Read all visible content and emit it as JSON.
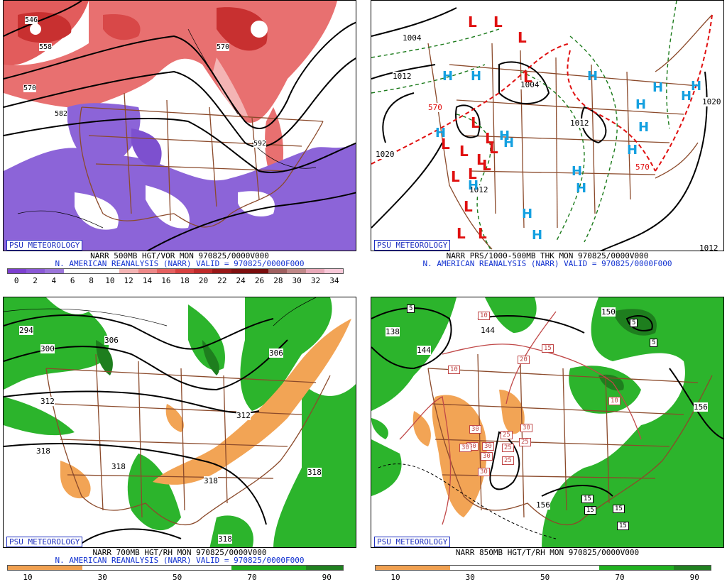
{
  "psu_label": "PSU METEOROLOGY",
  "reanalysis_text": "N. AMERICAN REANALYSIS (NARR) VALID = 970825/0000F000",
  "colors": {
    "label_blue": "#2030c0",
    "state_lines": "#8b4a2b",
    "low_red": "#e01010",
    "high_cyan": "#14a0e0"
  },
  "panels": {
    "top_left": {
      "title": "NARR 500MB HGT/VOR MON 970825/0000V000",
      "contour_labels": [
        "546",
        "558",
        "570",
        "582",
        "570",
        "592"
      ],
      "colorbar_ticks": [
        "0",
        "2",
        "4",
        "6",
        "8",
        "10",
        "12",
        "14",
        "16",
        "18",
        "20",
        "22",
        "24",
        "26",
        "28",
        "30",
        "32",
        "34"
      ],
      "colorbar_colors": [
        "#7d3fd0",
        "#8a58d6",
        "#9b75da",
        "#ffffff",
        "#ffffff",
        "#ffffff",
        "#f4b4b4",
        "#ee8888",
        "#e66060",
        "#d84040",
        "#c02a2a",
        "#9a1818",
        "#801010",
        "#7a0c0c",
        "#a06060",
        "#c08888",
        "#e8a8b8",
        "#f8c8d8"
      ]
    },
    "top_right": {
      "title": "NARR PRS/1000-500MB THK MON 970825/0000V000",
      "contour_labels": [
        "1004",
        "1012",
        "1020",
        "1004",
        "1012",
        "1012",
        "1020",
        "570",
        "570",
        "1012"
      ],
      "low_markers": [
        "L",
        "L",
        "L",
        "L",
        "L",
        "L",
        "L",
        "L",
        "L",
        "L",
        "L",
        "L",
        "L",
        "L",
        "L",
        "L"
      ],
      "high_markers": [
        "H",
        "H",
        "H",
        "H",
        "H",
        "H",
        "H",
        "H",
        "H",
        "H",
        "H",
        "H",
        "H",
        "H",
        "H",
        "H",
        "H"
      ]
    },
    "bottom_left": {
      "title": "NARR 700MB HGT/RH MON 970825/0000V000",
      "contour_labels": [
        "294",
        "300",
        "306",
        "306",
        "312",
        "312",
        "318",
        "318",
        "318",
        "318",
        "318"
      ],
      "colorbar_ticks": [
        "10",
        "30",
        "50",
        "70",
        "90"
      ],
      "colorbar_colors": [
        "#f0a050",
        "#f0a050",
        "#ffffff",
        "#ffffff",
        "#ffffff",
        "#ffffff",
        "#20b020",
        "#20b020",
        "#208020"
      ]
    },
    "bottom_right": {
      "title": "NARR 850MB HGT/T/RH MON 970825/0000V000",
      "contour_labels": [
        "138",
        "144",
        "144",
        "150",
        "156",
        "156"
      ],
      "temp_boxes": [
        "5",
        "5",
        "5",
        "10",
        "10",
        "20",
        "10",
        "15",
        "15",
        "30",
        "30",
        "30",
        "30",
        "30",
        "30",
        "25",
        "25",
        "25",
        "30",
        "25",
        "15",
        "15",
        "15"
      ],
      "colorbar_ticks": [
        "10",
        "30",
        "50",
        "70",
        "90"
      ],
      "colorbar_colors": [
        "#f0a050",
        "#f0a050",
        "#ffffff",
        "#ffffff",
        "#ffffff",
        "#ffffff",
        "#20b020",
        "#20b020",
        "#208020"
      ]
    }
  }
}
